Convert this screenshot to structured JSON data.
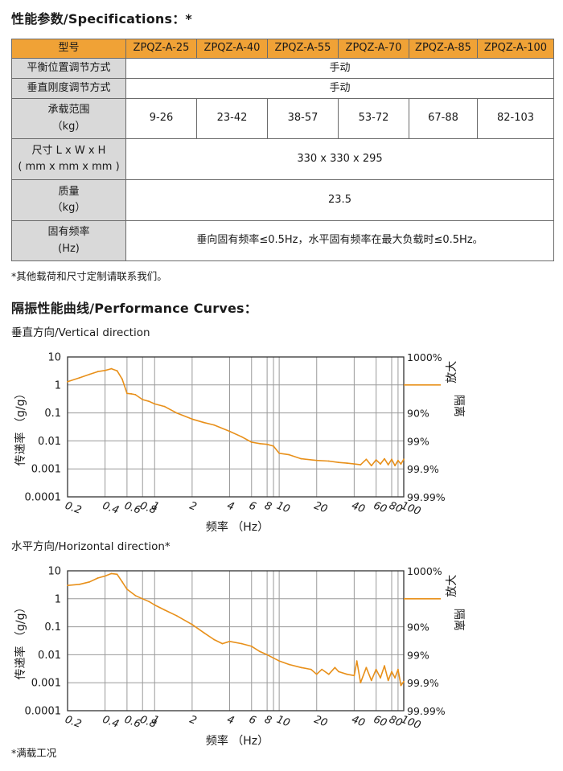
{
  "spec": {
    "title": "性能参数/Specifications：*",
    "header": [
      "型号",
      "ZPQZ-A-25",
      "ZPQZ-A-40",
      "ZPQZ-A-55",
      "ZPQZ-A-70",
      "ZPQZ-A-85",
      "ZPQZ-A-100"
    ],
    "balance_label": "平衡位置调节方式",
    "balance_value": "手动",
    "stiffness_label": "垂直刚度调节方式",
    "stiffness_value": "手动",
    "load_label_1": "承载范围",
    "load_label_2": "（kg）",
    "loads": [
      "9-26",
      "23-42",
      "38-57",
      "53-72",
      "67-88",
      "82-103"
    ],
    "size_label_1": "尺寸 L x W x H",
    "size_label_2": "( mm x mm x mm )",
    "size_value": "330 x 330 x 295",
    "mass_label_1": "质量",
    "mass_label_2": "（kg）",
    "mass_value": "23.5",
    "freq_label_1": "固有频率",
    "freq_label_2": "(Hz)",
    "freq_value": "垂向固有频率≤0.5Hz，水平固有频率在最大负载时≤0.5Hz。",
    "note": "*其他载荷和尺寸定制请联系我们。"
  },
  "curves": {
    "title": "隔振性能曲线/Performance Curves：",
    "footnote": "*满载工况"
  },
  "chart_data": [
    {
      "type": "line",
      "title": "垂直方向/Vertical direction",
      "xlabel": "频率 （Hz）",
      "ylabel": "传递率 （g/g）",
      "x_scale": "log",
      "y_scale": "log",
      "xlim": [
        0.2,
        100
      ],
      "ylim": [
        0.0001,
        10
      ],
      "xticks": [
        0.2,
        0.4,
        0.6,
        0.8,
        1,
        2,
        4,
        6,
        8,
        10,
        20,
        40,
        60,
        80,
        100
      ],
      "xtick_labels": [
        "0.2",
        "0.4",
        "0.6",
        "0.8",
        "1",
        "2",
        "4",
        "6",
        "8",
        "10",
        "20",
        "40",
        "60",
        "80",
        "100"
      ],
      "yticks": [
        10,
        1,
        0.1,
        0.01,
        0.001,
        0.0001
      ],
      "ytick_labels": [
        "10",
        "1",
        "0.1",
        "0.01",
        "0.001",
        "0.0001"
      ],
      "right_ticks": [
        "1000%",
        "90%",
        "99%",
        "99.9%",
        "99.99%"
      ],
      "amplify_label": "放大",
      "isolate_label": "隔离",
      "grid": true,
      "color": "#e8901a",
      "series": [
        {
          "x": [
            0.2,
            0.25,
            0.3,
            0.35,
            0.4,
            0.45,
            0.5,
            0.55,
            0.6,
            0.65,
            0.7,
            0.8,
            0.9,
            1,
            1.2,
            1.5,
            2,
            2.5,
            3,
            4,
            5,
            6,
            7,
            8,
            9,
            10,
            12,
            15,
            20,
            25,
            30,
            35,
            40,
            45,
            50,
            55,
            60,
            65,
            70,
            75,
            80,
            85,
            90,
            95,
            100
          ],
          "y": [
            1.3,
            1.8,
            2.4,
            3.0,
            3.3,
            3.8,
            3.2,
            1.6,
            0.5,
            0.48,
            0.45,
            0.3,
            0.26,
            0.21,
            0.17,
            0.1,
            0.06,
            0.045,
            0.037,
            0.022,
            0.014,
            0.009,
            0.008,
            0.0075,
            0.0065,
            0.0036,
            0.0032,
            0.0023,
            0.002,
            0.0019,
            0.0017,
            0.0016,
            0.0015,
            0.0014,
            0.0022,
            0.0013,
            0.0021,
            0.0015,
            0.0023,
            0.0014,
            0.0022,
            0.0013,
            0.002,
            0.0015,
            0.0022
          ]
        }
      ]
    },
    {
      "type": "line",
      "title": "水平方向/Horizontal direction*",
      "xlabel": "频率 （Hz）",
      "ylabel": "传递率 （g/g）",
      "x_scale": "log",
      "y_scale": "log",
      "xlim": [
        0.2,
        100
      ],
      "ylim": [
        0.0001,
        10
      ],
      "xticks": [
        0.2,
        0.4,
        0.6,
        0.8,
        1,
        2,
        4,
        6,
        8,
        10,
        20,
        40,
        60,
        80,
        100
      ],
      "xtick_labels": [
        "0.2",
        "0.4",
        "0.6",
        "0.8",
        "1",
        "2",
        "4",
        "6",
        "8",
        "10",
        "20",
        "40",
        "60",
        "80",
        "100"
      ],
      "yticks": [
        10,
        1,
        0.1,
        0.01,
        0.001,
        0.0001
      ],
      "ytick_labels": [
        "10",
        "1",
        "0.1",
        "0.01",
        "0.001",
        "0.0001"
      ],
      "right_ticks": [
        "1000%",
        "90%",
        "99%",
        "99.9%",
        "99.99%"
      ],
      "amplify_label": "放大",
      "isolate_label": "隔离",
      "grid": true,
      "color": "#e8901a",
      "series": [
        {
          "x": [
            0.2,
            0.25,
            0.3,
            0.35,
            0.4,
            0.45,
            0.5,
            0.55,
            0.6,
            0.7,
            0.8,
            0.9,
            1,
            1.2,
            1.5,
            2,
            2.5,
            3,
            3.5,
            4,
            5,
            6,
            7,
            8,
            10,
            12,
            15,
            18,
            20,
            22,
            25,
            28,
            30,
            35,
            40,
            42,
            45,
            50,
            55,
            60,
            65,
            70,
            75,
            80,
            85,
            90,
            95,
            100
          ],
          "y": [
            3.0,
            3.3,
            4.0,
            5.5,
            6.5,
            8.0,
            7.5,
            4.0,
            2.2,
            1.3,
            1.0,
            0.8,
            0.6,
            0.4,
            0.25,
            0.12,
            0.06,
            0.035,
            0.025,
            0.03,
            0.025,
            0.02,
            0.013,
            0.01,
            0.006,
            0.0045,
            0.0035,
            0.003,
            0.002,
            0.003,
            0.002,
            0.0035,
            0.0025,
            0.002,
            0.0018,
            0.006,
            0.001,
            0.0035,
            0.0012,
            0.003,
            0.0015,
            0.004,
            0.0012,
            0.0025,
            0.0015,
            0.003,
            0.0008,
            0.0011
          ]
        }
      ]
    }
  ]
}
